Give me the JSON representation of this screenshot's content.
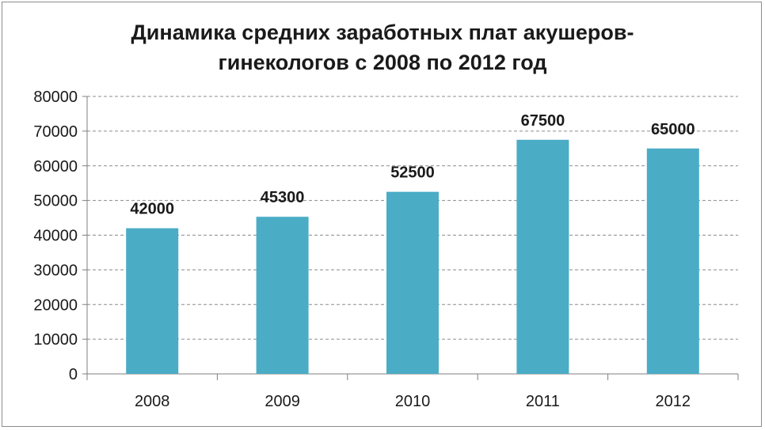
{
  "chart_data": {
    "type": "bar",
    "title": "Динамика средних заработных плат акушеров-гинекологов с 2008 по 2012 год",
    "title_lines": [
      "Динамика средних заработных плат акушеров-",
      "гинекологов с 2008 по 2012 год"
    ],
    "categories": [
      "2008",
      "2009",
      "2010",
      "2011",
      "2012"
    ],
    "values": [
      42000,
      45300,
      52500,
      67500,
      65000
    ],
    "data_labels": [
      "42000",
      "45300",
      "52500",
      "67500",
      "65000"
    ],
    "y_ticks": [
      "0",
      "10000",
      "20000",
      "30000",
      "40000",
      "50000",
      "60000",
      "70000",
      "80000"
    ],
    "xlabel": "",
    "ylabel": "",
    "ylim": [
      0,
      80000
    ],
    "grid": "horizontal-dashed",
    "legend": "none",
    "bar_color": "#4bacc6"
  }
}
